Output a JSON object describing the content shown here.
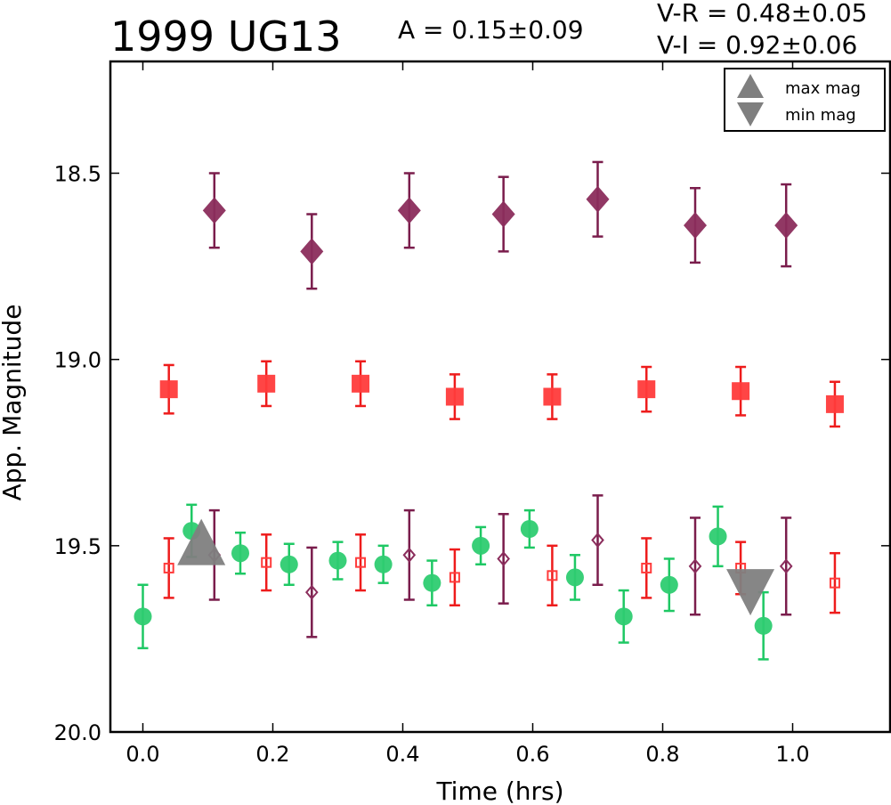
{
  "chart_data": {
    "type": "scatter",
    "title": "1999 UG13",
    "annotations": {
      "amplitude": "A  = 0.15±0.09",
      "v_r": "V-R = 0.48±0.05",
      "v_i": "V-I  = 0.92±0.06"
    },
    "xlabel": "Time (hrs)",
    "ylabel": "App. Magnitude",
    "xlim": [
      -0.05,
      1.15
    ],
    "ylim": [
      20.0,
      18.2
    ],
    "y_inverted": true,
    "x_ticks": [
      "0.0",
      "0.2",
      "0.4",
      "0.6",
      "0.8",
      "1.0"
    ],
    "y_ticks": [
      "18.5",
      "19.0",
      "19.5",
      "20.0"
    ],
    "grid": false,
    "legend_position": "top-right",
    "legend": [
      {
        "label": "max mag",
        "marker": "triangle-up",
        "color": "#7f7f7f"
      },
      {
        "label": "min mag",
        "marker": "triangle-down",
        "color": "#7f7f7f"
      }
    ],
    "series": [
      {
        "marker": "diamond",
        "filled": true,
        "color": "#8b2d5c",
        "errcolor": "#7a1d4c",
        "points": [
          {
            "x": 0.11,
            "y": 18.6,
            "err": 0.1
          },
          {
            "x": 0.26,
            "y": 18.71,
            "err": 0.1
          },
          {
            "x": 0.41,
            "y": 18.6,
            "err": 0.1
          },
          {
            "x": 0.555,
            "y": 18.61,
            "err": 0.1
          },
          {
            "x": 0.7,
            "y": 18.57,
            "err": 0.1
          },
          {
            "x": 0.85,
            "y": 18.64,
            "err": 0.1
          },
          {
            "x": 0.99,
            "y": 18.64,
            "err": 0.11
          }
        ]
      },
      {
        "marker": "square",
        "filled": true,
        "color": "#ff3b3b",
        "errcolor": "#ee1c1c",
        "points": [
          {
            "x": 0.04,
            "y": 19.08,
            "err": 0.065
          },
          {
            "x": 0.19,
            "y": 19.065,
            "err": 0.06
          },
          {
            "x": 0.335,
            "y": 19.065,
            "err": 0.06
          },
          {
            "x": 0.48,
            "y": 19.1,
            "err": 0.06
          },
          {
            "x": 0.63,
            "y": 19.1,
            "err": 0.06
          },
          {
            "x": 0.775,
            "y": 19.08,
            "err": 0.06
          },
          {
            "x": 0.92,
            "y": 19.085,
            "err": 0.065
          },
          {
            "x": 1.065,
            "y": 19.12,
            "err": 0.06
          }
        ]
      },
      {
        "marker": "circle",
        "filled": true,
        "color": "#2ecc71",
        "errcolor": "#1ec864",
        "points": [
          {
            "x": 0.0,
            "y": 19.69,
            "err": 0.085
          },
          {
            "x": 0.075,
            "y": 19.46,
            "err": 0.07
          },
          {
            "x": 0.15,
            "y": 19.52,
            "err": 0.055
          },
          {
            "x": 0.225,
            "y": 19.55,
            "err": 0.055
          },
          {
            "x": 0.3,
            "y": 19.54,
            "err": 0.05
          },
          {
            "x": 0.37,
            "y": 19.55,
            "err": 0.05
          },
          {
            "x": 0.445,
            "y": 19.6,
            "err": 0.06
          },
          {
            "x": 0.52,
            "y": 19.5,
            "err": 0.05
          },
          {
            "x": 0.595,
            "y": 19.455,
            "err": 0.05
          },
          {
            "x": 0.665,
            "y": 19.585,
            "err": 0.06
          },
          {
            "x": 0.74,
            "y": 19.69,
            "err": 0.07
          },
          {
            "x": 0.81,
            "y": 19.605,
            "err": 0.07
          },
          {
            "x": 0.885,
            "y": 19.475,
            "err": 0.08
          },
          {
            "x": 0.955,
            "y": 19.715,
            "err": 0.09
          }
        ]
      },
      {
        "marker": "square",
        "filled": false,
        "color": "#ff3b3b",
        "errcolor": "#ee1c1c",
        "points": [
          {
            "x": 0.04,
            "y": 19.56,
            "err": 0.08
          },
          {
            "x": 0.19,
            "y": 19.545,
            "err": 0.075
          },
          {
            "x": 0.335,
            "y": 19.545,
            "err": 0.075
          },
          {
            "x": 0.48,
            "y": 19.585,
            "err": 0.075
          },
          {
            "x": 0.63,
            "y": 19.58,
            "err": 0.08
          },
          {
            "x": 0.775,
            "y": 19.56,
            "err": 0.08
          },
          {
            "x": 0.92,
            "y": 19.56,
            "err": 0.07
          },
          {
            "x": 1.065,
            "y": 19.6,
            "err": 0.08
          }
        ]
      },
      {
        "marker": "diamond",
        "filled": false,
        "color": "#8b2d5c",
        "errcolor": "#7a1d4c",
        "points": [
          {
            "x": 0.11,
            "y": 19.525,
            "err": 0.12
          },
          {
            "x": 0.26,
            "y": 19.625,
            "err": 0.12
          },
          {
            "x": 0.41,
            "y": 19.525,
            "err": 0.12
          },
          {
            "x": 0.555,
            "y": 19.535,
            "err": 0.12
          },
          {
            "x": 0.7,
            "y": 19.485,
            "err": 0.12
          },
          {
            "x": 0.85,
            "y": 19.555,
            "err": 0.13
          },
          {
            "x": 0.99,
            "y": 19.555,
            "err": 0.13
          }
        ]
      }
    ],
    "extremes": [
      {
        "label": "max mag",
        "x": 0.09,
        "y": 19.49,
        "marker": "triangle-up",
        "color": "#7f7f7f"
      },
      {
        "label": "min mag",
        "x": 0.935,
        "y": 19.625,
        "marker": "triangle-down",
        "color": "#7f7f7f"
      }
    ]
  }
}
